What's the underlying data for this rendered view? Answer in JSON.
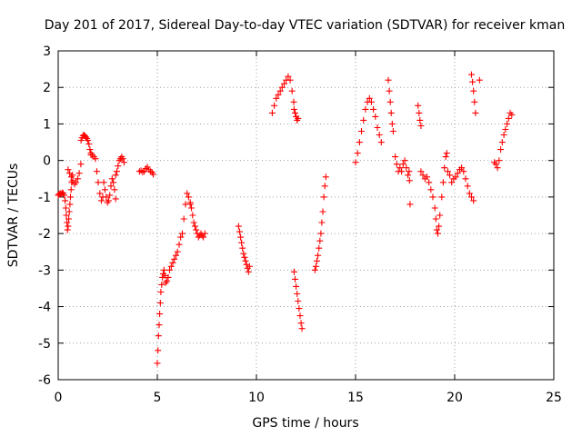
{
  "chart_data": {
    "type": "scatter",
    "title": "Day 201 of 2017, Sidereal Day-to-day VTEC variation (SDTVAR) for receiver kman",
    "xlabel": "GPS time / hours",
    "ylabel": "SDTVAR / TECUs",
    "xlim": [
      0,
      25
    ],
    "ylim": [
      -6,
      3
    ],
    "xticks": [
      0,
      5,
      10,
      15,
      20,
      25
    ],
    "yticks": [
      -6,
      -5,
      -4,
      -3,
      -2,
      -1,
      0,
      1,
      2,
      3
    ],
    "grid": true,
    "marker": "+",
    "color": "#ff0000",
    "series": [
      {
        "name": "s1",
        "x": [
          0.0,
          0.05,
          0.1,
          0.15,
          0.2,
          0.25,
          0.3
        ],
        "y": [
          -0.95,
          -0.92,
          -0.9,
          -0.92,
          -0.88,
          -0.9,
          -0.95
        ]
      },
      {
        "name": "s2",
        "x": [
          0.35,
          0.38,
          0.41,
          0.44,
          0.47,
          0.5,
          0.53,
          0.56,
          0.59,
          0.62,
          0.65,
          0.68,
          0.72
        ],
        "y": [
          -1.1,
          -1.3,
          -1.5,
          -1.7,
          -1.9,
          -1.8,
          -1.6,
          -1.4,
          -1.2,
          -1.0,
          -0.8,
          -0.6,
          -0.4
        ]
      },
      {
        "name": "s3",
        "x": [
          0.5,
          0.58,
          0.66,
          0.74,
          0.82,
          0.9,
          0.98,
          1.06,
          1.14
        ],
        "y": [
          -0.25,
          -0.35,
          -0.45,
          -0.55,
          -0.65,
          -0.6,
          -0.5,
          -0.35,
          -0.1
        ]
      },
      {
        "name": "s4",
        "x": [
          1.15,
          1.2,
          1.25,
          1.3,
          1.35,
          1.4,
          1.45,
          1.5,
          1.55,
          1.6,
          1.65
        ],
        "y": [
          0.55,
          0.62,
          0.68,
          0.7,
          0.67,
          0.64,
          0.6,
          0.55,
          0.45,
          0.3,
          0.15
        ]
      },
      {
        "name": "s5",
        "x": [
          1.65,
          1.72,
          1.8,
          1.88,
          1.95,
          2.02,
          2.1,
          2.18,
          2.25
        ],
        "y": [
          0.2,
          0.15,
          0.1,
          0.05,
          -0.3,
          -0.6,
          -0.9,
          -1.1,
          -1.0
        ]
      },
      {
        "name": "s6",
        "x": [
          2.3,
          2.36,
          2.42,
          2.48,
          2.54,
          2.6,
          2.66,
          2.72,
          2.78,
          2.84,
          2.9
        ],
        "y": [
          -0.6,
          -0.8,
          -1.0,
          -1.15,
          -1.1,
          -0.95,
          -0.7,
          -0.5,
          -0.6,
          -0.8,
          -1.05
        ]
      },
      {
        "name": "s7",
        "x": [
          2.9,
          2.96,
          3.02,
          3.08,
          3.14,
          3.2,
          3.26,
          3.32
        ],
        "y": [
          -0.4,
          -0.3,
          -0.15,
          0.0,
          0.05,
          0.1,
          0.05,
          -0.05
        ]
      },
      {
        "name": "s8",
        "x": [
          4.1,
          4.18,
          4.26,
          4.34,
          4.42,
          4.5,
          4.58,
          4.66,
          4.74,
          4.8
        ],
        "y": [
          -0.3,
          -0.28,
          -0.32,
          -0.3,
          -0.22,
          -0.18,
          -0.25,
          -0.3,
          -0.33,
          -0.38
        ]
      },
      {
        "name": "s9",
        "x": [
          5.0,
          5.03,
          5.06,
          5.09,
          5.12,
          5.15,
          5.18,
          5.22,
          5.26,
          5.3,
          5.34,
          5.38,
          5.42,
          5.48,
          5.55,
          5.62,
          5.7,
          5.78,
          5.86,
          5.94,
          6.02,
          6.1,
          6.18,
          6.26,
          6.34,
          6.42,
          6.5,
          6.58,
          6.66
        ],
        "y": [
          -5.55,
          -5.2,
          -4.8,
          -4.5,
          -4.2,
          -3.9,
          -3.6,
          -3.4,
          -3.2,
          -3.1,
          -3.0,
          -3.15,
          -3.35,
          -3.3,
          -3.2,
          -3.0,
          -2.9,
          -2.8,
          -2.7,
          -2.6,
          -2.5,
          -2.3,
          -2.1,
          -2.0,
          -1.6,
          -1.2,
          -0.9,
          -1.0,
          -1.15
        ]
      },
      {
        "name": "s10",
        "x": [
          6.66,
          6.72,
          6.78,
          6.84,
          6.9,
          6.96,
          7.02,
          7.08,
          7.14,
          7.2,
          7.26,
          7.32,
          7.4
        ],
        "y": [
          -1.2,
          -1.3,
          -1.5,
          -1.7,
          -1.8,
          -1.9,
          -2.0,
          -2.1,
          -2.05,
          -2.0,
          -2.05,
          -2.1,
          -2.0
        ]
      },
      {
        "name": "s11",
        "x": [
          9.1,
          9.15,
          9.2,
          9.25,
          9.3,
          9.35,
          9.4,
          9.45,
          9.5,
          9.55,
          9.6,
          9.65
        ],
        "y": [
          -1.8,
          -1.95,
          -2.1,
          -2.25,
          -2.4,
          -2.55,
          -2.65,
          -2.75,
          -2.85,
          -2.95,
          -3.05,
          -2.9
        ]
      },
      {
        "name": "s12",
        "x": [
          10.8,
          10.9,
          11.0,
          11.1,
          11.2,
          11.3,
          11.4,
          11.5,
          11.6,
          11.7,
          11.8,
          11.88
        ],
        "y": [
          1.3,
          1.5,
          1.7,
          1.8,
          1.9,
          2.0,
          2.1,
          2.2,
          2.3,
          2.2,
          1.9,
          1.6
        ]
      },
      {
        "name": "s13",
        "x": [
          11.9,
          11.95,
          12.0,
          12.05,
          12.1
        ],
        "y": [
          1.4,
          1.3,
          1.2,
          1.1,
          1.15
        ]
      },
      {
        "name": "s14",
        "x": [
          11.9,
          11.95,
          12.0,
          12.05,
          12.1,
          12.15,
          12.2,
          12.25,
          12.3
        ],
        "y": [
          -3.05,
          -3.25,
          -3.45,
          -3.65,
          -3.85,
          -4.05,
          -4.25,
          -4.45,
          -4.6
        ]
      },
      {
        "name": "s15",
        "x": [
          12.95,
          13.0,
          13.05,
          13.1,
          13.15,
          13.2,
          13.25,
          13.3,
          13.35,
          13.4,
          13.45,
          13.5
        ],
        "y": [
          -3.0,
          -2.9,
          -2.75,
          -2.6,
          -2.4,
          -2.2,
          -2.0,
          -1.7,
          -1.4,
          -1.0,
          -0.7,
          -0.45
        ]
      },
      {
        "name": "s16",
        "x": [
          15.0,
          15.1,
          15.2,
          15.3,
          15.4,
          15.5,
          15.6,
          15.7,
          15.8,
          15.9,
          16.0,
          16.1,
          16.2,
          16.3
        ],
        "y": [
          -0.05,
          0.2,
          0.5,
          0.8,
          1.1,
          1.4,
          1.6,
          1.7,
          1.6,
          1.4,
          1.2,
          0.9,
          0.7,
          0.5
        ]
      },
      {
        "name": "s17",
        "x": [
          16.65,
          16.7,
          16.75,
          16.8,
          16.85,
          16.9
        ],
        "y": [
          2.2,
          1.9,
          1.6,
          1.3,
          1.0,
          0.8
        ]
      },
      {
        "name": "s18",
        "x": [
          17.0,
          17.08,
          17.16,
          17.24,
          17.32,
          17.4,
          17.48,
          17.56,
          17.64,
          17.72
        ],
        "y": [
          0.1,
          -0.1,
          -0.3,
          -0.2,
          -0.3,
          -0.1,
          0.0,
          -0.2,
          -0.4,
          -0.55
        ]
      },
      {
        "name": "s19",
        "x": [
          17.7,
          17.75,
          18.15,
          18.2,
          18.25,
          18.3
        ],
        "y": [
          -0.3,
          -1.2,
          1.5,
          1.3,
          1.1,
          0.95
        ]
      },
      {
        "name": "s20",
        "x": [
          18.3,
          18.4,
          18.5,
          18.6,
          18.7,
          18.8,
          18.9,
          19.0,
          19.05,
          19.1,
          19.15,
          19.2,
          19.25
        ],
        "y": [
          -0.3,
          -0.4,
          -0.5,
          -0.45,
          -0.6,
          -0.8,
          -1.0,
          -1.3,
          -1.6,
          -1.9,
          -2.0,
          -1.8,
          -1.5
        ]
      },
      {
        "name": "s21",
        "x": [
          19.35,
          19.42,
          19.48,
          19.55,
          19.6
        ],
        "y": [
          -1.0,
          -0.6,
          -0.2,
          0.1,
          0.2
        ]
      },
      {
        "name": "s22",
        "x": [
          19.65,
          19.75,
          19.85,
          19.95,
          20.05,
          20.15,
          20.25,
          20.35,
          20.45,
          20.55,
          20.65,
          20.75,
          20.85,
          20.95
        ],
        "y": [
          -0.3,
          -0.4,
          -0.6,
          -0.5,
          -0.45,
          -0.35,
          -0.25,
          -0.2,
          -0.3,
          -0.5,
          -0.7,
          -0.9,
          -1.0,
          -1.1
        ]
      },
      {
        "name": "s23",
        "x": [
          20.85,
          20.9,
          20.95,
          21.0,
          21.05,
          21.25
        ],
        "y": [
          2.35,
          2.15,
          1.9,
          1.6,
          1.3,
          2.2
        ]
      },
      {
        "name": "s24",
        "x": [
          22.0,
          22.08,
          22.16,
          22.24,
          22.32,
          22.4,
          22.48,
          22.56,
          22.64,
          22.72,
          22.8,
          22.88
        ],
        "y": [
          -0.05,
          -0.1,
          -0.2,
          0.0,
          0.3,
          0.5,
          0.7,
          0.85,
          1.0,
          1.15,
          1.3,
          1.25
        ]
      }
    ]
  }
}
